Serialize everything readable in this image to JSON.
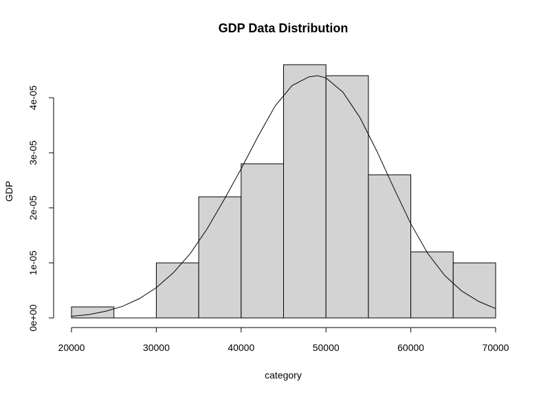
{
  "chart_data": {
    "type": "bar",
    "title": "GDP Data Distribution",
    "xlabel": "category",
    "ylabel": "GDP",
    "xlim": [
      20000,
      70000
    ],
    "ylim": [
      0,
      4e-05
    ],
    "x_ticks": [
      20000,
      30000,
      40000,
      50000,
      60000,
      70000
    ],
    "x_tick_labels": [
      "20000",
      "30000",
      "40000",
      "50000",
      "60000",
      "70000"
    ],
    "y_ticks": [
      0,
      1e-05,
      2e-05,
      3e-05,
      4e-05
    ],
    "y_tick_labels": [
      "0e+00",
      "1e-05",
      "2e-05",
      "3e-05",
      "4e-05"
    ],
    "bin_edges": [
      20000,
      25000,
      30000,
      35000,
      40000,
      45000,
      50000,
      55000,
      60000,
      65000,
      70000
    ],
    "densities": [
      2e-06,
      0,
      1e-05,
      2.2e-05,
      2.8e-05,
      4.6e-05,
      4.4e-05,
      2.6e-05,
      1.2e-05,
      1e-05
    ],
    "density_curve": {
      "x": [
        20000,
        22000,
        24000,
        26000,
        28000,
        30000,
        32000,
        34000,
        36000,
        38000,
        40000,
        42000,
        44000,
        46000,
        48000,
        49000,
        50000,
        52000,
        54000,
        56000,
        58000,
        60000,
        62000,
        64000,
        66000,
        68000,
        70000
      ],
      "y": [
        3e-07,
        6e-07,
        1.2e-06,
        2.1e-06,
        3.5e-06,
        5.5e-06,
        8.2e-06,
        1.17e-05,
        1.62e-05,
        2.15e-05,
        2.71e-05,
        3.3e-05,
        3.85e-05,
        4.22e-05,
        4.38e-05,
        4.4e-05,
        4.36e-05,
        4.1e-05,
        3.64e-05,
        3.03e-05,
        2.36e-05,
        1.71e-05,
        1.17e-05,
        7.7e-06,
        4.9e-06,
        3e-06,
        1.7e-06
      ]
    },
    "grid": false
  }
}
